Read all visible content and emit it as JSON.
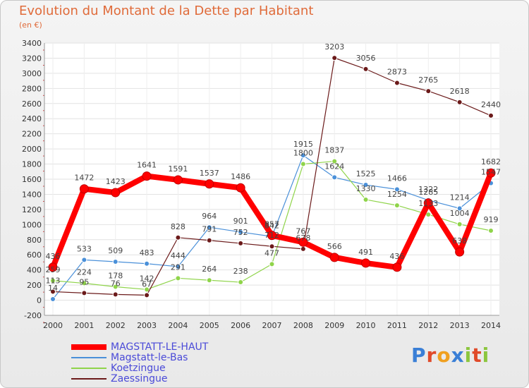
{
  "chart_data": {
    "type": "line",
    "title": "Evolution du Montant de la Dette par Habitant",
    "subtitle": "(en €)",
    "xlabel": "",
    "ylabel": "",
    "ylim": [
      -200,
      3400
    ],
    "ytick_step": 200,
    "grid": true,
    "legend_position": "bottom-left",
    "categories": [
      "2000",
      "2001",
      "2002",
      "2003",
      "2004",
      "2005",
      "2006",
      "2007",
      "2008",
      "2009",
      "2010",
      "2011",
      "2012",
      "2013",
      "2014"
    ],
    "series": [
      {
        "name": "MAGSTATT-LE-HAUT",
        "color": "#ff0000",
        "highlight": true,
        "values": [
          436,
          1472,
          1423,
          1641,
          1591,
          1537,
          1486,
          857,
          767,
          566,
          491,
          436,
          1285,
          638,
          1682
        ],
        "labels": [
          "436",
          "1472",
          "1423",
          "1641",
          "1591",
          "1537",
          "1486",
          "857",
          "767",
          "566",
          "491",
          "436",
          "1285",
          "638",
          "1682"
        ]
      },
      {
        "name": "Magstatt-le-Bas",
        "color": "#4a90d9",
        "highlight": false,
        "values": [
          14,
          533,
          509,
          483,
          444,
          964,
          901,
          842,
          1915,
          1624,
          1525,
          1466,
          1322,
          1214,
          1547
        ],
        "labels": [
          "14",
          "533",
          "509",
          "483",
          "444",
          "964",
          "901",
          "842",
          "1915",
          "1624",
          "1525",
          "1466",
          "1322",
          "1214",
          "1547"
        ]
      },
      {
        "name": "Koetzingue",
        "color": "#8fd44a",
        "highlight": false,
        "values": [
          259,
          224,
          178,
          142,
          291,
          264,
          238,
          477,
          1800,
          1837,
          1330,
          1254,
          1133,
          1004,
          919
        ],
        "labels": [
          "259",
          "224",
          "178",
          "142",
          "291",
          "264",
          "238",
          "477",
          "1800",
          "1837",
          "1330",
          "1254",
          "1133",
          "1004",
          "919"
        ]
      },
      {
        "name": "Zaessingue",
        "color": "#6b1a1a",
        "highlight": false,
        "values": [
          113,
          95,
          76,
          67,
          828,
          791,
          752,
          712,
          678,
          3203,
          3056,
          2873,
          2765,
          2618,
          2440
        ],
        "labels": [
          "113",
          "95",
          "76",
          "67",
          "828",
          "791",
          "752",
          "712",
          "678",
          "3203",
          "3056",
          "2873",
          "2765",
          "2618",
          "2440"
        ]
      }
    ]
  },
  "brand": {
    "text": "Proxiti",
    "letter_colors": [
      "#3a7fd6",
      "#e04a2a",
      "#f0a020",
      "#3a7fd6",
      "#8cc63e",
      "#e04a2a",
      "#8cc63e"
    ]
  }
}
